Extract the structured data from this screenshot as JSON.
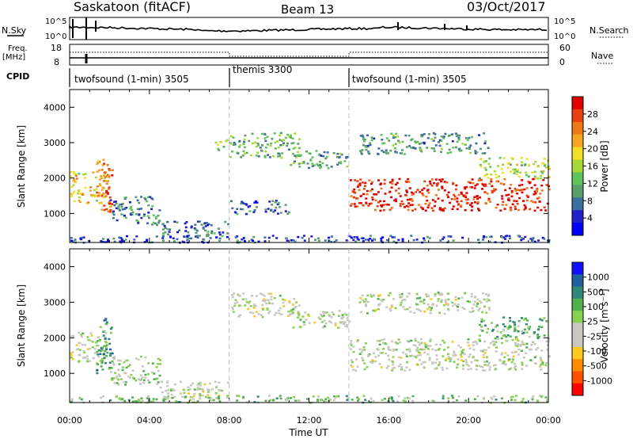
{
  "header": {
    "title": "Saskatoon (fitACF)",
    "beam": "Beam 13",
    "date": "03/Oct/2017"
  },
  "noise_panel": {
    "left_label": "N.Sky",
    "right_label": "N.Search",
    "y_top_tick": "10^5",
    "y_bottom_tick": "10^0"
  },
  "freq_panel": {
    "left_label_1": "Freq.",
    "left_label_2": "[MHz]",
    "right_label": "Nave",
    "left_ticks": [
      "18",
      "8"
    ],
    "right_ticks": [
      "60",
      "0"
    ]
  },
  "cpid": {
    "label": "CPID",
    "segments": [
      {
        "start_hour": 0.0,
        "name": "twofsound (1-min) 3505"
      },
      {
        "start_hour": 8.0,
        "name": "themis 3300"
      },
      {
        "start_hour": 14.0,
        "name": "twofsound (1-min) 3505"
      }
    ]
  },
  "colors": {
    "power": [
      "#0000ff",
      "#2020c8",
      "#3c6ea0",
      "#5a9e6a",
      "#5ec45a",
      "#a8d838",
      "#f0e028",
      "#f5a623",
      "#f07818",
      "#e84010",
      "#e00000"
    ],
    "velocity": [
      "#ff0000",
      "#ff5000",
      "#ff8c00",
      "#ffc820",
      "#c8c8c0",
      "#c8c8c0",
      "#88d050",
      "#50b050",
      "#308878",
      "#2060a0",
      "#1010ff"
    ]
  },
  "chart_data": [
    {
      "type": "heatmap",
      "name": "power",
      "ylabel": "Slant Range [km]",
      "yticks": [
        1000,
        2000,
        3000,
        4000
      ],
      "ylim": [
        180,
        4500
      ],
      "xlim": [
        0,
        24
      ],
      "colorbar_label": "Power [dB]",
      "colorbar_ticks": [
        "28",
        "24",
        "20",
        "16",
        "12",
        "8",
        "4"
      ],
      "regions": [
        {
          "t": [
            0.0,
            1.8
          ],
          "r": [
            1300,
            2200
          ],
          "level": 0.6
        },
        {
          "t": [
            1.3,
            2.1
          ],
          "r": [
            900,
            2600
          ],
          "level": 0.8
        },
        {
          "t": [
            2.0,
            4.5
          ],
          "r": [
            700,
            1500
          ],
          "level": 0.25
        },
        {
          "t": [
            4.5,
            8.0
          ],
          "r": [
            300,
            800
          ],
          "level": 0.2
        },
        {
          "t": [
            7.2,
            8.0
          ],
          "r": [
            2800,
            3100
          ],
          "level": 0.45
        },
        {
          "t": [
            8.0,
            11.5
          ],
          "r": [
            2600,
            3300
          ],
          "level": 0.35
        },
        {
          "t": [
            8.0,
            11.0
          ],
          "r": [
            1000,
            1400
          ],
          "level": 0.2
        },
        {
          "t": [
            11.0,
            14.0
          ],
          "r": [
            2300,
            2800
          ],
          "level": 0.3
        },
        {
          "t": [
            14.0,
            24.0
          ],
          "r": [
            1100,
            2000
          ],
          "level": 0.95
        },
        {
          "t": [
            14.5,
            21.0
          ],
          "r": [
            2700,
            3300
          ],
          "level": 0.3
        },
        {
          "t": [
            20.5,
            24.0
          ],
          "r": [
            2000,
            2600
          ],
          "level": 0.5
        },
        {
          "t": [
            0.0,
            24.0
          ],
          "r": [
            200,
            400
          ],
          "level": 0.15
        }
      ]
    },
    {
      "type": "heatmap",
      "name": "velocity",
      "ylabel": "Slant Range [km]",
      "xlabel": "Time UT",
      "xticks": [
        "00:00",
        "04:00",
        "08:00",
        "12:00",
        "16:00",
        "20:00",
        "00:00"
      ],
      "yticks": [
        1000,
        2000,
        3000,
        4000
      ],
      "ylim": [
        180,
        4500
      ],
      "xlim": [
        0,
        24
      ],
      "colorbar_label": "Velocity [m s⁻¹]",
      "colorbar_ticks": [
        "1000",
        "500",
        "100",
        "25",
        "-25",
        "-100",
        "-500",
        "-1000"
      ],
      "regions": [
        {
          "t": [
            0.0,
            1.8
          ],
          "r": [
            1300,
            2200
          ],
          "level": 0.5
        },
        {
          "t": [
            1.3,
            2.1
          ],
          "r": [
            900,
            2600
          ],
          "level": 0.75
        },
        {
          "t": [
            2.0,
            4.5
          ],
          "r": [
            700,
            1500
          ],
          "level": 0.55
        },
        {
          "t": [
            4.5,
            8.0
          ],
          "r": [
            300,
            800
          ],
          "level": 0.5
        },
        {
          "t": [
            8.0,
            11.5
          ],
          "r": [
            2600,
            3300
          ],
          "level": 0.48
        },
        {
          "t": [
            11.0,
            14.0
          ],
          "r": [
            2300,
            2800
          ],
          "level": 0.5
        },
        {
          "t": [
            14.0,
            24.0
          ],
          "r": [
            1100,
            2000
          ],
          "level": 0.5
        },
        {
          "t": [
            14.5,
            21.0
          ],
          "r": [
            2700,
            3300
          ],
          "level": 0.5
        },
        {
          "t": [
            20.5,
            24.0
          ],
          "r": [
            2000,
            2600
          ],
          "level": 0.7
        },
        {
          "t": [
            0.0,
            24.0
          ],
          "r": [
            200,
            400
          ],
          "level": 0.6
        }
      ]
    }
  ]
}
